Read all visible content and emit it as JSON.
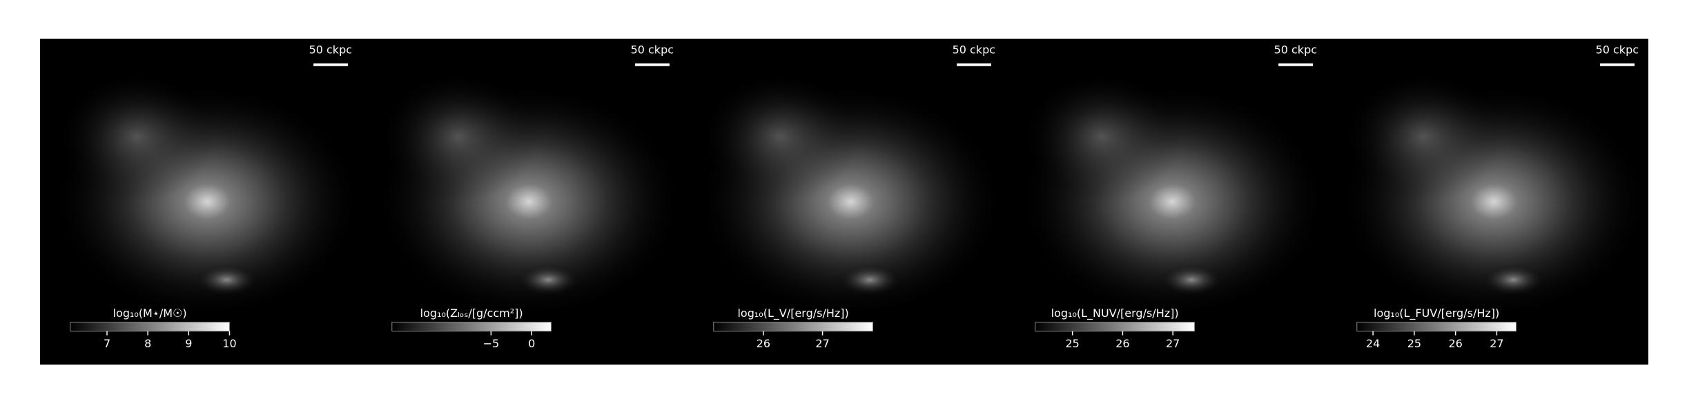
{
  "chart_data": [
    {
      "type": "image",
      "scale_label": "50 ckpc",
      "colorbar_label": "log₁₀(M⋆/M☉)",
      "clim": [
        6.1,
        10
      ],
      "cticks": [
        7,
        8,
        9,
        10
      ]
    },
    {
      "type": "image",
      "scale_label": "50 ckpc",
      "colorbar_label": "log₁₀(Zₗₒₛ/[g/ccm²])",
      "clim": [
        -17.2,
        2.4
      ],
      "cticks": [
        {
          "value": -5,
          "label": "−5"
        },
        0
      ]
    },
    {
      "type": "image",
      "scale_label": "50 ckpc",
      "colorbar_label": "log₁₀(L_V/[erg/s/Hz])",
      "clim": [
        25.16,
        27.85
      ],
      "cticks": [
        26,
        27
      ]
    },
    {
      "type": "image",
      "scale_label": "50 ckpc",
      "colorbar_label": "log₁₀(L_NUV/[erg/s/Hz])",
      "clim": [
        24.26,
        27.43
      ],
      "cticks": [
        25,
        26,
        27
      ]
    },
    {
      "type": "image",
      "scale_label": "50 ckpc",
      "colorbar_label": "log₁₀(L_FUV/[erg/s/Hz])",
      "clim": [
        23.61,
        27.47
      ],
      "cticks": [
        24,
        25,
        26,
        27
      ]
    }
  ]
}
